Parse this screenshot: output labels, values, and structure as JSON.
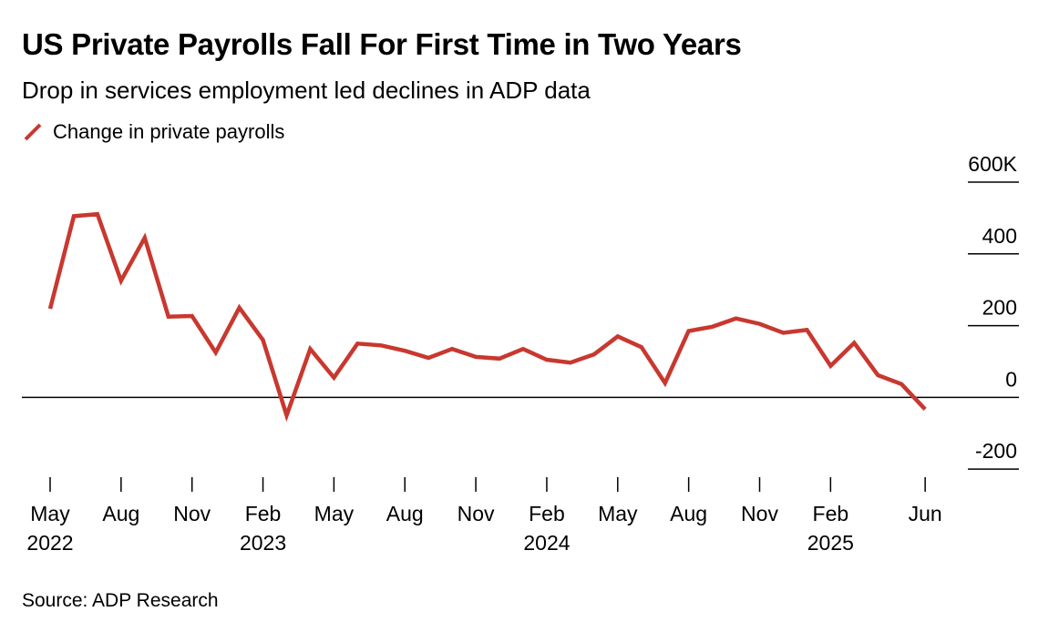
{
  "header": {
    "title": "US Private Payrolls Fall For First Time in Two Years",
    "subtitle": "Drop in services employment led declines in ADP data"
  },
  "footer": {
    "source": "Source: ADP Research"
  },
  "colors": {
    "series": "#c8382f",
    "zero_line": "#000000",
    "axis": "#000000"
  },
  "chart_data": {
    "type": "line",
    "series": [
      {
        "name": "Change in private payrolls",
        "x": [
          "2022-05",
          "2022-06",
          "2022-07",
          "2022-08",
          "2022-09",
          "2022-10",
          "2022-11",
          "2022-12",
          "2023-01",
          "2023-02",
          "2023-03",
          "2023-04",
          "2023-05",
          "2023-06",
          "2023-07",
          "2023-08",
          "2023-09",
          "2023-10",
          "2023-11",
          "2023-12",
          "2024-01",
          "2024-02",
          "2024-03",
          "2024-04",
          "2024-05",
          "2024-06",
          "2024-07",
          "2024-08",
          "2024-09",
          "2024-10",
          "2024-11",
          "2024-12",
          "2025-01",
          "2025-02",
          "2025-03",
          "2025-04",
          "2025-05",
          "2025-06"
        ],
        "values": [
          247,
          505,
          511,
          325,
          445,
          225,
          227,
          125,
          250,
          160,
          -50,
          135,
          55,
          150,
          145,
          130,
          110,
          135,
          113,
          108,
          135,
          105,
          97,
          120,
          170,
          140,
          40,
          185,
          197,
          220,
          205,
          180,
          188,
          88,
          152,
          62,
          37,
          -33
        ]
      }
    ],
    "legend": {
      "entries": [
        "Change in private payrolls"
      ],
      "placement": "top-left"
    },
    "y_axis": {
      "ticks": [
        -200,
        0,
        200,
        400,
        600
      ],
      "tick_labels": [
        "-200",
        "0",
        "200",
        "400",
        "600K"
      ],
      "ylim": [
        -230,
        600
      ],
      "position": "right"
    },
    "x_axis": {
      "ticks": [
        "2022-05",
        "2022-08",
        "2022-11",
        "2023-02",
        "2023-05",
        "2023-08",
        "2023-11",
        "2024-02",
        "2024-05",
        "2024-08",
        "2024-11",
        "2025-02",
        "2025-06"
      ],
      "tick_labels": [
        "May",
        "Aug",
        "Nov",
        "Feb",
        "May",
        "Aug",
        "Nov",
        "Feb",
        "May",
        "Aug",
        "Nov",
        "Feb",
        "Jun"
      ],
      "year_labels": {
        "2022-05": "2022",
        "2023-02": "2023",
        "2024-02": "2024",
        "2025-02": "2025"
      }
    },
    "zero_line": true,
    "grid": false
  }
}
